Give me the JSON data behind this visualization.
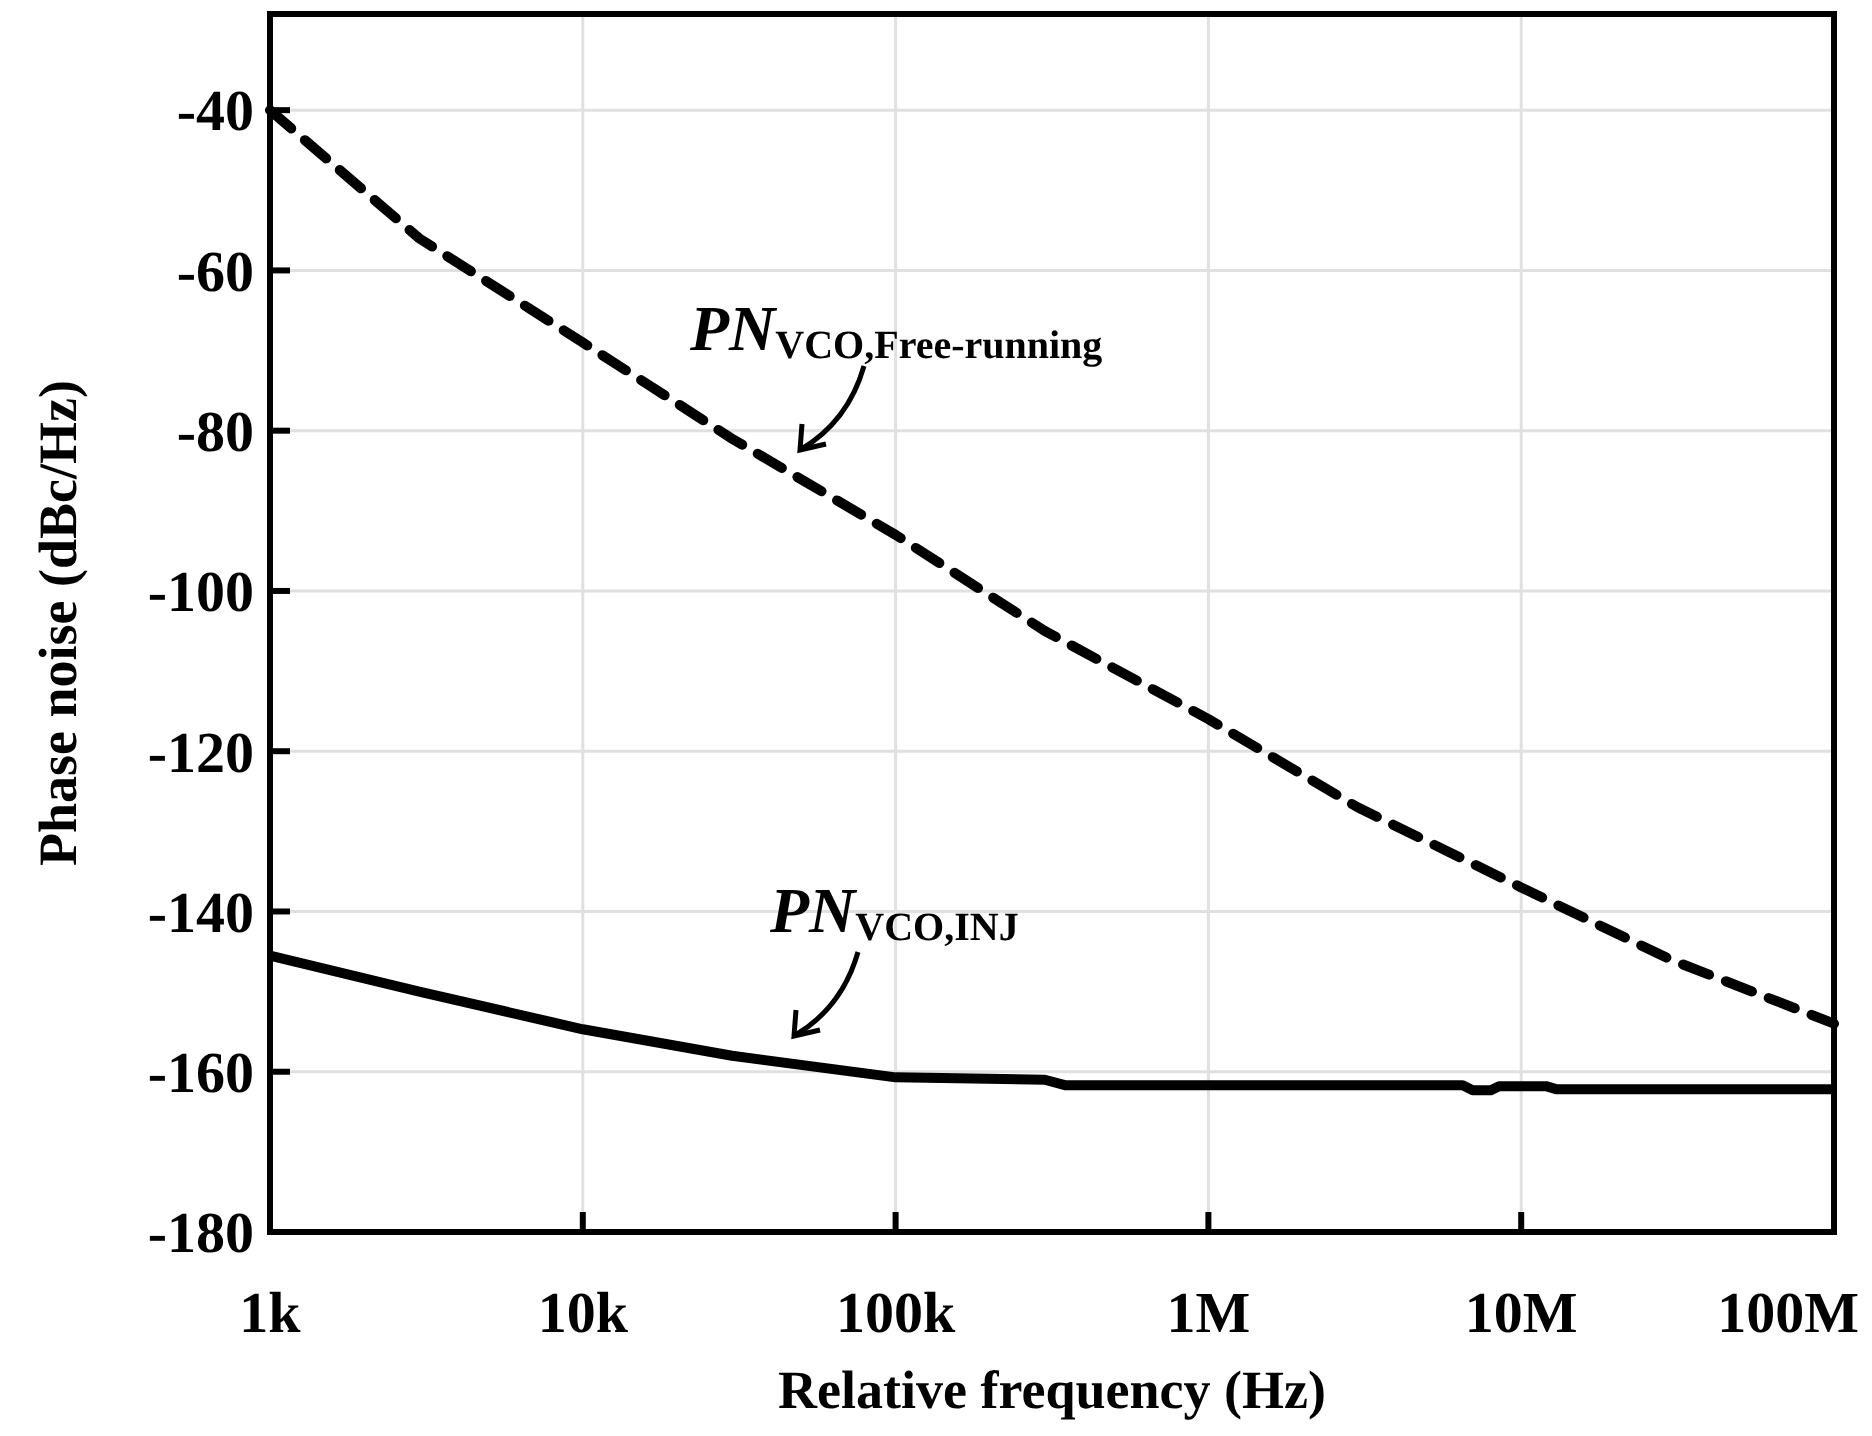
{
  "chart_data": {
    "type": "line",
    "xlabel": "Relative frequency (Hz)",
    "ylabel": "Phase noise (dBc/Hz)",
    "log": "x",
    "grid": true,
    "xlim": [
      1000,
      100000000
    ],
    "xticks": [
      {
        "value": 1000,
        "label": "1k"
      },
      {
        "value": 10000,
        "label": "10k"
      },
      {
        "value": 100000,
        "label": "100k"
      },
      {
        "value": 1000000,
        "label": "1M"
      },
      {
        "value": 10000000,
        "label": "10M"
      },
      {
        "value": 100000000,
        "label": "100M"
      }
    ],
    "ylim": [
      -180,
      -28
    ],
    "yticks": [
      -40,
      -60,
      -80,
      -100,
      -120,
      -140,
      -160,
      -180
    ],
    "series": [
      {
        "color": "#000000",
        "line_style": "dashed",
        "x": [
          1000,
          3000,
          10000,
          30000,
          100000,
          300000,
          1000000,
          3000000,
          10000000,
          30000000,
          100000000
        ],
        "values": [
          -40,
          -56,
          -69,
          -81,
          -93,
          -105,
          -116,
          -127,
          -137,
          -146,
          -154
        ]
      },
      {
        "color": "#000000",
        "line_style": "solid",
        "x": [
          1000,
          3000,
          10000,
          30000,
          100000,
          300000,
          350000,
          1000000,
          6500000,
          7000000,
          8000000,
          8500000,
          12000000,
          13000000,
          100000000
        ],
        "values": [
          -145.5,
          -150,
          -154.7,
          -158,
          -160.7,
          -161,
          -161.7,
          -161.7,
          -161.7,
          -162.3,
          -162.3,
          -161.8,
          -161.8,
          -162.2,
          -162.2
        ]
      }
    ],
    "annotations": [
      "PN$_{VCO,Free-running}$",
      "PN$_{VCO,INJ}$"
    ]
  }
}
